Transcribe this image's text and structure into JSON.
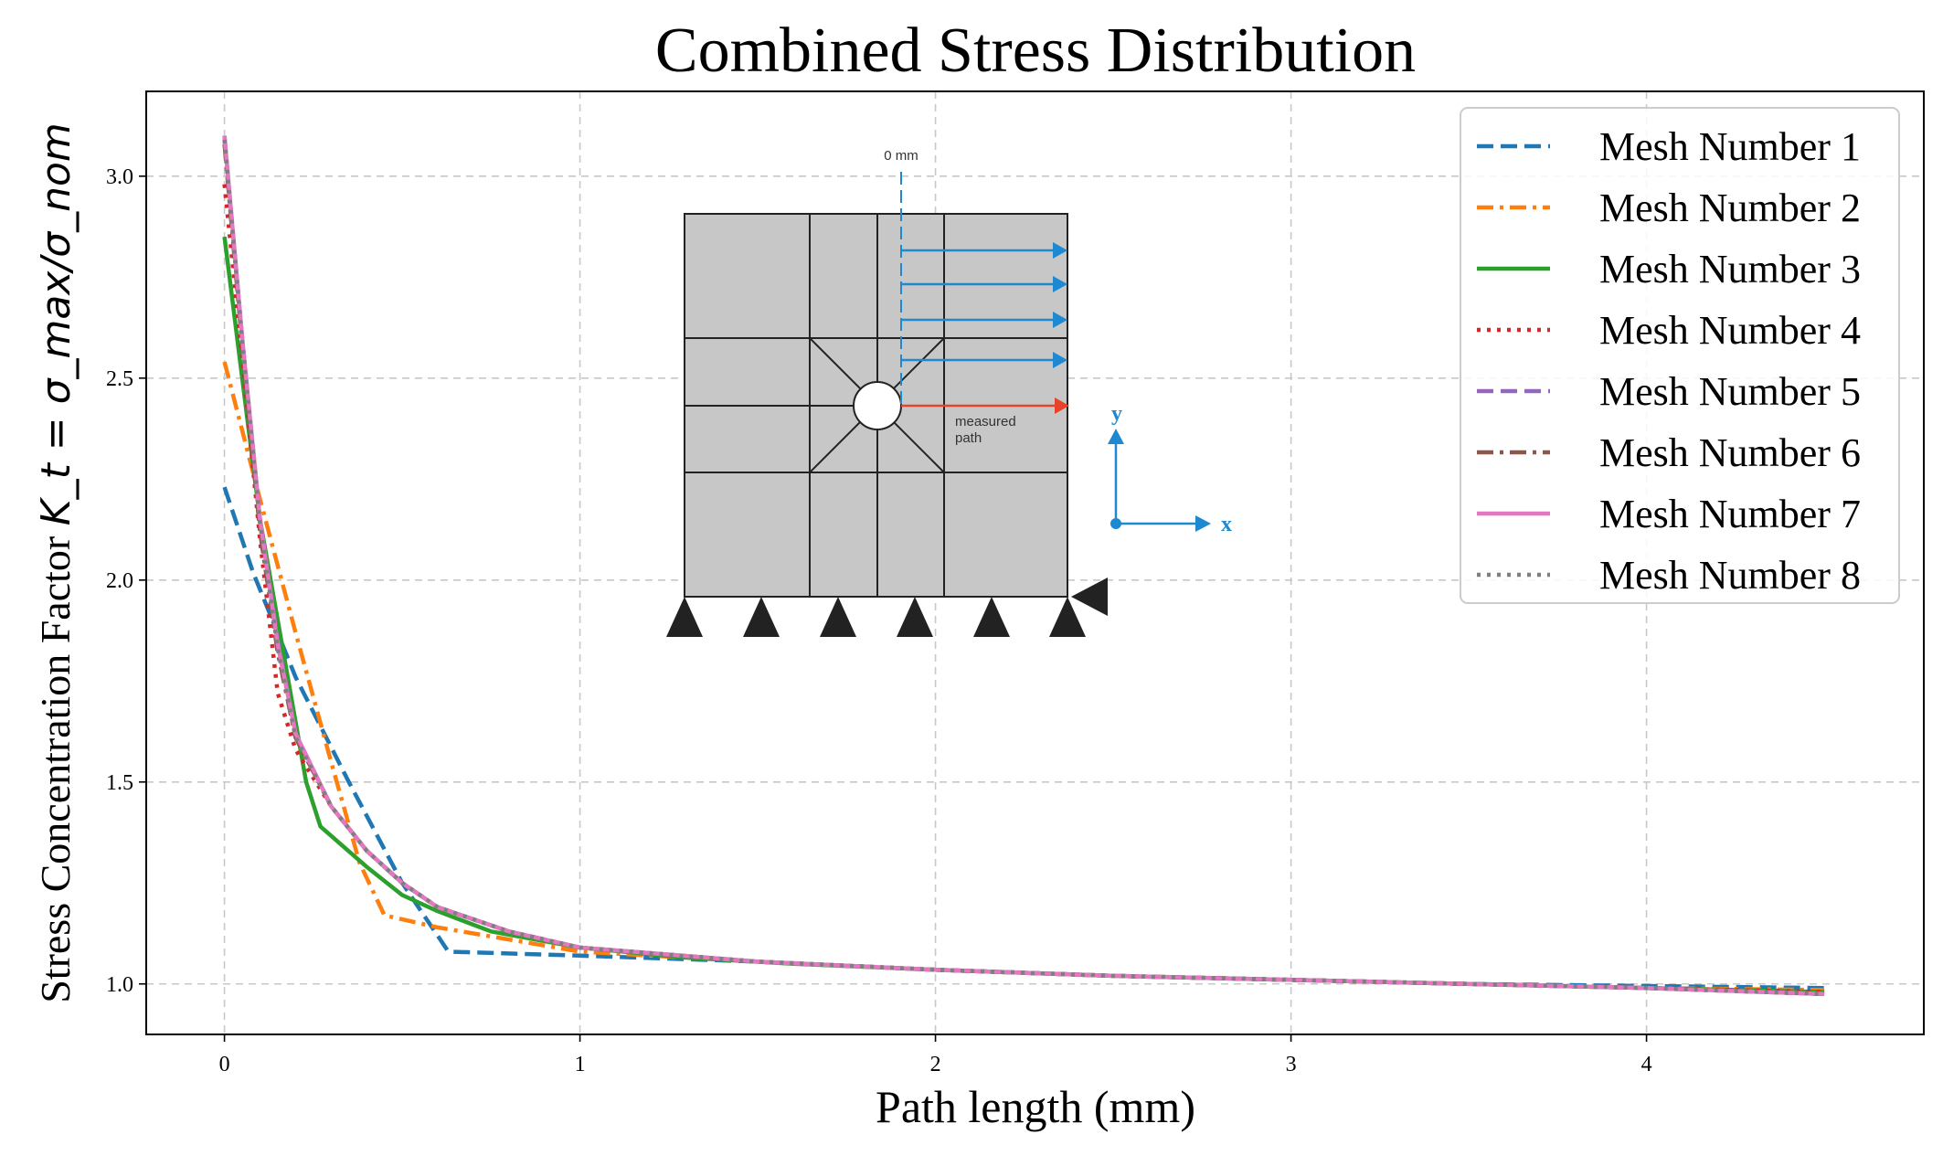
{
  "chart_data": {
    "type": "line",
    "title": "Combined Stress Distribution",
    "xlabel": "Path length (mm)",
    "ylabel_prefix": "Stress Concentration Factor ",
    "ylabel_math": "K_t = σ_max/σ_nom",
    "xlim": [
      -0.22,
      4.78
    ],
    "ylim": [
      0.875,
      3.21
    ],
    "xticks": [
      0,
      1,
      2,
      3,
      4
    ],
    "yticks": [
      1.0,
      1.5,
      2.0,
      2.5,
      3.0
    ],
    "xtick_labels": [
      "0",
      "1",
      "2",
      "3",
      "4"
    ],
    "ytick_labels": [
      "1.0",
      "1.5",
      "2.0",
      "2.5",
      "3.0"
    ],
    "grid": true,
    "legend_position": "top-right",
    "series": [
      {
        "name": "Mesh Number 1",
        "color": "#1f77b4",
        "dash": "dashed",
        "x": [
          0,
          0.08,
          0.2,
          0.35,
          0.5,
          0.63,
          1.0,
          1.5,
          2.0,
          2.5,
          3.0,
          3.5,
          4.0,
          4.5
        ],
        "y": [
          2.23,
          2.02,
          1.76,
          1.5,
          1.25,
          1.08,
          1.07,
          1.055,
          1.035,
          1.02,
          1.01,
          1.0,
          0.995,
          0.99
        ]
      },
      {
        "name": "Mesh Number 2",
        "color": "#ff7f0e",
        "dash": "dashdot",
        "x": [
          0,
          0.1,
          0.2,
          0.3,
          0.38,
          0.45,
          0.6,
          0.8,
          1.0,
          1.5,
          2.0,
          2.5,
          3.0,
          3.5,
          4.0,
          4.5
        ],
        "y": [
          2.54,
          2.2,
          1.87,
          1.55,
          1.3,
          1.17,
          1.14,
          1.11,
          1.08,
          1.055,
          1.035,
          1.02,
          1.01,
          1.0,
          0.99,
          0.985
        ]
      },
      {
        "name": "Mesh Number 3",
        "color": "#2ca02c",
        "dash": "solid",
        "x": [
          0,
          0.05,
          0.1,
          0.17,
          0.23,
          0.27,
          0.4,
          0.5,
          0.6,
          0.75,
          1.0,
          1.3,
          1.6,
          2.0,
          2.5,
          3.0,
          3.5,
          4.0,
          4.5
        ],
        "y": [
          2.85,
          2.5,
          2.15,
          1.8,
          1.5,
          1.39,
          1.29,
          1.22,
          1.18,
          1.13,
          1.09,
          1.065,
          1.05,
          1.035,
          1.02,
          1.01,
          1.0,
          0.99,
          0.98
        ]
      },
      {
        "name": "Mesh Number 4",
        "color": "#d62728",
        "dash": "dotted",
        "x": [
          0,
          0.05,
          0.1,
          0.15,
          0.2,
          0.3,
          0.4,
          0.5,
          0.6,
          0.8,
          1.0,
          1.5,
          2.0,
          2.5,
          3.0,
          3.5,
          4.0,
          4.5
        ],
        "y": [
          2.98,
          2.55,
          2.1,
          1.72,
          1.58,
          1.44,
          1.33,
          1.25,
          1.19,
          1.13,
          1.09,
          1.055,
          1.035,
          1.02,
          1.01,
          1.0,
          0.99,
          0.98
        ]
      },
      {
        "name": "Mesh Number 5",
        "color": "#9467bd",
        "dash": "dashed",
        "x": [
          0,
          0.05,
          0.1,
          0.15,
          0.2,
          0.3,
          0.4,
          0.5,
          0.6,
          0.8,
          1.0,
          1.5,
          2.0,
          2.5,
          3.0,
          3.5,
          4.0,
          4.5
        ],
        "y": [
          3.1,
          2.6,
          2.15,
          1.85,
          1.62,
          1.44,
          1.33,
          1.25,
          1.19,
          1.13,
          1.09,
          1.055,
          1.035,
          1.02,
          1.01,
          1.0,
          0.99,
          0.975
        ]
      },
      {
        "name": "Mesh Number 6",
        "color": "#8c564b",
        "dash": "dashdot",
        "x": [
          0,
          0.05,
          0.1,
          0.15,
          0.2,
          0.3,
          0.4,
          0.5,
          0.6,
          0.8,
          1.0,
          1.5,
          2.0,
          2.5,
          3.0,
          3.5,
          4.0,
          4.5
        ],
        "y": [
          3.08,
          2.58,
          2.12,
          1.82,
          1.61,
          1.44,
          1.33,
          1.25,
          1.19,
          1.13,
          1.09,
          1.055,
          1.035,
          1.02,
          1.01,
          1.0,
          0.99,
          0.975
        ]
      },
      {
        "name": "Mesh Number 7",
        "color": "#e377c2",
        "dash": "solid",
        "x": [
          0,
          0.05,
          0.1,
          0.15,
          0.2,
          0.3,
          0.4,
          0.5,
          0.6,
          0.8,
          1.0,
          1.5,
          2.0,
          2.5,
          3.0,
          3.5,
          4.0,
          4.5
        ],
        "y": [
          3.1,
          2.6,
          2.15,
          1.84,
          1.62,
          1.44,
          1.33,
          1.25,
          1.19,
          1.13,
          1.09,
          1.055,
          1.035,
          1.02,
          1.01,
          1.0,
          0.99,
          0.975
        ]
      },
      {
        "name": "Mesh Number 8",
        "color": "#7f7f7f",
        "dash": "dotted",
        "x": [
          0,
          0.05,
          0.1,
          0.15,
          0.2,
          0.3,
          0.4,
          0.5,
          0.6,
          0.8,
          1.0,
          1.5,
          2.0,
          2.5,
          3.0,
          3.5,
          4.0,
          4.5
        ],
        "y": [
          3.09,
          2.59,
          2.14,
          1.83,
          1.61,
          1.44,
          1.33,
          1.25,
          1.19,
          1.13,
          1.09,
          1.055,
          1.035,
          1.02,
          1.01,
          1.0,
          0.99,
          0.975
        ]
      }
    ],
    "inset": {
      "top_label": "0 mm",
      "path_label_line1": "measured",
      "path_label_line2": "path",
      "axis_y_label": "y",
      "axis_x_label": "x",
      "plate_color": "#c6c7c6",
      "arrow_color": "#1e88d0",
      "path_color": "#e8412c"
    }
  }
}
